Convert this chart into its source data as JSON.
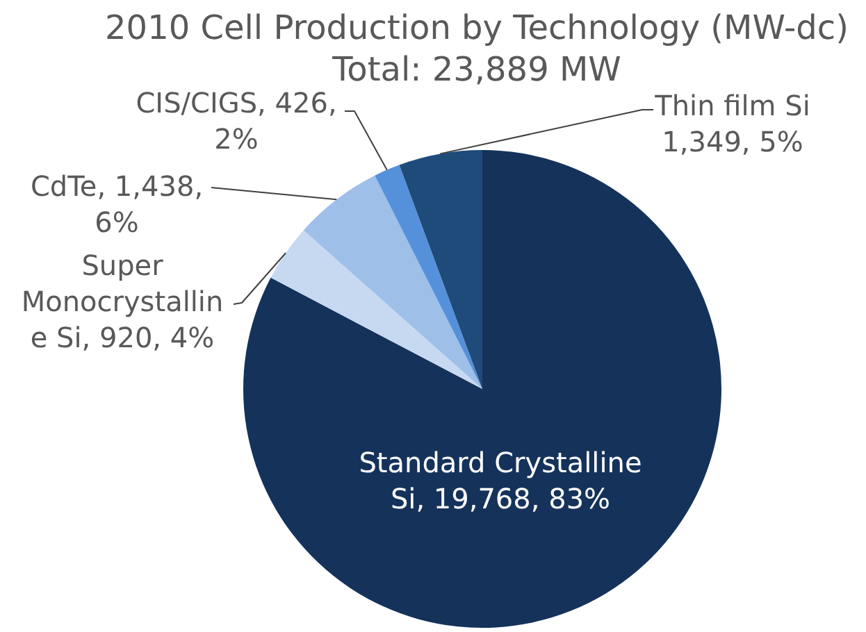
{
  "chart_data": {
    "type": "pie",
    "title": "2010 Cell Production by Technology (MW-dc)",
    "subtitle": "Total: 23,889 MW",
    "categories": [
      "Standard Crystalline Si",
      "Super Monocrystalline Si",
      "CdTe",
      "CIS/CIGS",
      "Thin film Si"
    ],
    "values": [
      19768,
      920,
      1438,
      426,
      1349
    ],
    "colors": [
      "#15325a",
      "#c6d9f1",
      "#9dbfe8",
      "#5591da",
      "#1f4b7a"
    ],
    "value_labels": [
      "19,768, 83%",
      "920, 4%",
      "1,438, 6%",
      "426, 2%",
      "1,349, 5%"
    ]
  }
}
